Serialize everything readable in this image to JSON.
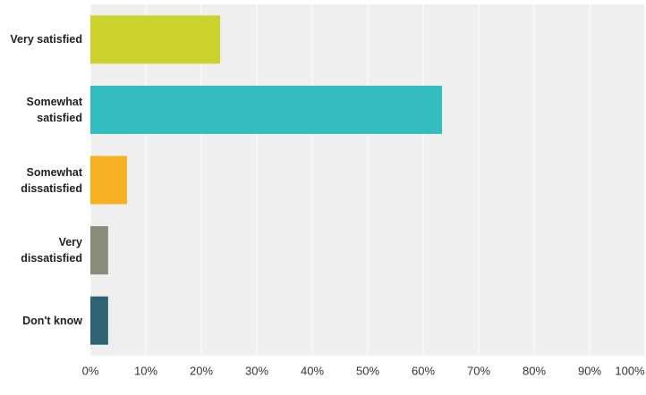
{
  "chart_data": {
    "type": "hbar",
    "categories": [
      "Very satisfied",
      "Somewhat satisfied",
      "Somewhat dissatisfied",
      "Very dissatisfied",
      "Don't know"
    ],
    "values": [
      23.4,
      63.4,
      6.6,
      3.2,
      3.2
    ],
    "colors": [
      "#cbd32c",
      "#33bdbf",
      "#f6b021",
      "#8a8b7b",
      "#2f6272"
    ],
    "xlim": [
      0,
      100
    ],
    "xticks": [
      {
        "value": 0,
        "label": "0%"
      },
      {
        "value": 10,
        "label": "10%"
      },
      {
        "value": 20,
        "label": "20%"
      },
      {
        "value": 30,
        "label": "30%"
      },
      {
        "value": 40,
        "label": "40%"
      },
      {
        "value": 50,
        "label": "50%"
      },
      {
        "value": 60,
        "label": "60%"
      },
      {
        "value": 70,
        "label": "70%"
      },
      {
        "value": 80,
        "label": "80%"
      },
      {
        "value": 90,
        "label": "90%"
      },
      {
        "value": 100,
        "label": "100%"
      }
    ],
    "grid": true
  }
}
